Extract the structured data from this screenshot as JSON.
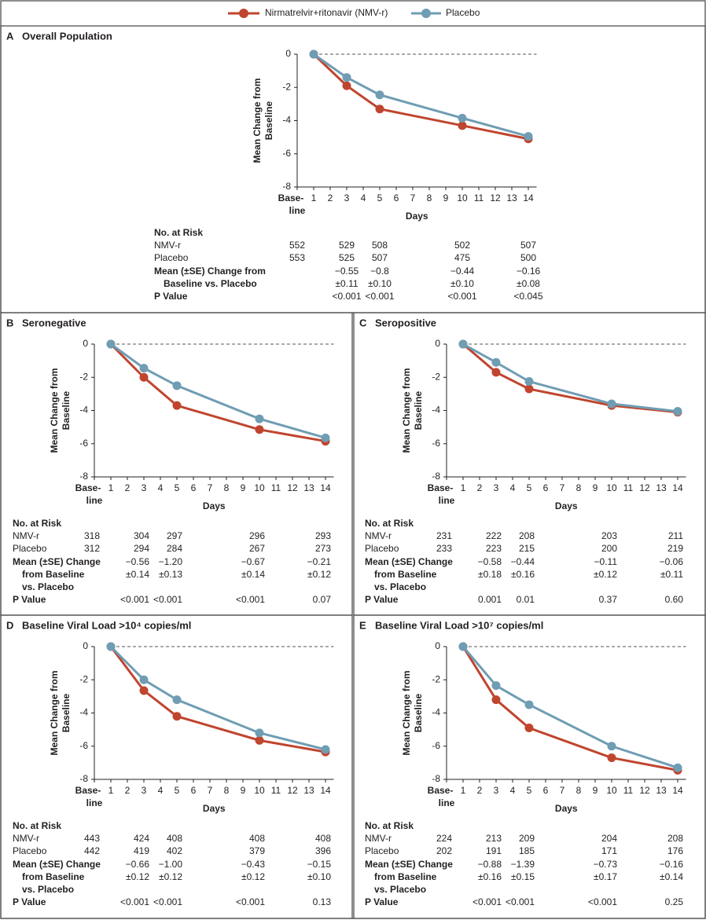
{
  "chart_data": [
    {
      "type": "line",
      "panel_label": "A",
      "title": "Overall Population",
      "y_label": [
        "Mean Change from",
        "Baseline"
      ],
      "x_label": "Days",
      "x": [
        1,
        3,
        5,
        10,
        14
      ],
      "xlim": [
        0,
        14.5
      ],
      "xticks": [
        {
          "value": 0,
          "label": "Base-line"
        },
        1,
        2,
        3,
        4,
        5,
        6,
        7,
        8,
        9,
        10,
        11,
        12,
        13,
        14
      ],
      "ylim": [
        -8,
        0
      ],
      "yticks": [
        0,
        -2,
        -4,
        -6,
        -8
      ],
      "series": [
        {
          "name": "Nirmatrelvir+ritonavir (NMV-r)",
          "color": "#c0452e",
          "values": [
            0,
            -1.9,
            -3.3,
            -4.3,
            -5.1
          ]
        },
        {
          "name": "Placebo",
          "color": "#6f9db3",
          "values": [
            0,
            -1.4,
            -2.45,
            -3.85,
            -4.95
          ]
        }
      ],
      "risk_table": {
        "heading": "No. at Risk",
        "rows": [
          {
            "label": "NMV-r",
            "values": [
              "552",
              "529",
              "508",
              "502",
              "507"
            ]
          },
          {
            "label": "Placebo",
            "values": [
              "553",
              "525",
              "507",
              "475",
              "500"
            ]
          }
        ],
        "difference": {
          "label": [
            "Mean (±SE) Change from",
            "Baseline vs. Placebo"
          ],
          "values": [
            "−0.55",
            "−0.8",
            "−0.44",
            "−0.16"
          ],
          "se": [
            "±0.11",
            "±0.10",
            "±0.10",
            "±0.08"
          ]
        },
        "p_value": {
          "label": "P Value",
          "values": [
            "<0.001",
            "<0.001",
            "<0.001",
            "<0.045"
          ]
        }
      }
    },
    {
      "type": "line",
      "panel_label": "B",
      "title": "Seronegative",
      "y_label": [
        "Mean Change from",
        "Baseline"
      ],
      "x_label": "Days",
      "x": [
        1,
        3,
        5,
        10,
        14
      ],
      "xlim": [
        0,
        14.5
      ],
      "xticks": [
        {
          "value": 0,
          "label": "Base-line"
        },
        1,
        2,
        3,
        4,
        5,
        6,
        7,
        8,
        9,
        10,
        11,
        12,
        13,
        14
      ],
      "ylim": [
        -8,
        0
      ],
      "yticks": [
        0,
        -2,
        -4,
        -6,
        -8
      ],
      "series": [
        {
          "color": "#c0452e",
          "values": [
            0,
            -2.0,
            -3.7,
            -5.15,
            -5.85
          ]
        },
        {
          "color": "#6f9db3",
          "values": [
            0,
            -1.45,
            -2.5,
            -4.5,
            -5.65
          ]
        }
      ],
      "risk_table": {
        "heading": "No. at Risk",
        "rows": [
          {
            "label": "NMV-r",
            "values": [
              "318",
              "304",
              "297",
              "296",
              "293"
            ]
          },
          {
            "label": "Placebo",
            "values": [
              "312",
              "294",
              "284",
              "267",
              "273"
            ]
          }
        ],
        "difference": {
          "label": [
            "Mean (±SE) Change",
            "from Baseline",
            "vs. Placebo"
          ],
          "values": [
            "−0.56",
            "−1.20",
            "−0.67",
            "−0.21"
          ],
          "se": [
            "±0.14",
            "±0.13",
            "±0.14",
            "±0.12"
          ]
        },
        "p_value": {
          "label": "P Value",
          "values": [
            "<0.001",
            "<0.001",
            "<0.001",
            "0.07"
          ]
        }
      }
    },
    {
      "type": "line",
      "panel_label": "C",
      "title": "Seropositive",
      "y_label": [
        "Mean Change from",
        "Baseline"
      ],
      "x_label": "Days",
      "x": [
        1,
        3,
        5,
        10,
        14
      ],
      "xlim": [
        0,
        14.5
      ],
      "xticks": [
        {
          "value": 0,
          "label": "Base-line"
        },
        1,
        2,
        3,
        4,
        5,
        6,
        7,
        8,
        9,
        10,
        11,
        12,
        13,
        14
      ],
      "ylim": [
        -8,
        0
      ],
      "yticks": [
        0,
        -2,
        -4,
        -6,
        -8
      ],
      "series": [
        {
          "color": "#c0452e",
          "values": [
            0,
            -1.7,
            -2.7,
            -3.7,
            -4.1
          ]
        },
        {
          "color": "#6f9db3",
          "values": [
            0,
            -1.1,
            -2.25,
            -3.6,
            -4.05
          ]
        }
      ],
      "risk_table": {
        "heading": "No. at Risk",
        "rows": [
          {
            "label": "NMV-r",
            "values": [
              "231",
              "222",
              "208",
              "203",
              "211"
            ]
          },
          {
            "label": "Placebo",
            "values": [
              "233",
              "223",
              "215",
              "200",
              "219"
            ]
          }
        ],
        "difference": {
          "label": [
            "Mean (±SE) Change",
            "from Baseline",
            "vs. Placebo"
          ],
          "values": [
            "−0.58",
            "−0.44",
            "−0.11",
            "−0.06"
          ],
          "se": [
            "±0.18",
            "±0.16",
            "±0.12",
            "±0.11"
          ]
        },
        "p_value": {
          "label": "P Value",
          "values": [
            "0.001",
            "0.01",
            "0.37",
            "0.60"
          ]
        }
      }
    },
    {
      "type": "line",
      "panel_label": "D",
      "title": "Baseline Viral Load >10⁴ copies/ml",
      "y_label": [
        "Mean Change from",
        "Baseline"
      ],
      "x_label": "Days",
      "x": [
        1,
        3,
        5,
        10,
        14
      ],
      "xlim": [
        0,
        14.5
      ],
      "xticks": [
        {
          "value": 0,
          "label": "Base-line"
        },
        1,
        2,
        3,
        4,
        5,
        6,
        7,
        8,
        9,
        10,
        11,
        12,
        13,
        14
      ],
      "ylim": [
        -8,
        0
      ],
      "yticks": [
        0,
        -2,
        -4,
        -6,
        -8
      ],
      "series": [
        {
          "color": "#c0452e",
          "values": [
            0,
            -2.65,
            -4.2,
            -5.65,
            -6.35
          ]
        },
        {
          "color": "#6f9db3",
          "values": [
            0,
            -2.0,
            -3.2,
            -5.2,
            -6.2
          ]
        }
      ],
      "risk_table": {
        "heading": "No. at Risk",
        "rows": [
          {
            "label": "NMV-r",
            "values": [
              "443",
              "424",
              "408",
              "408",
              "408"
            ]
          },
          {
            "label": "Placebo",
            "values": [
              "442",
              "419",
              "402",
              "379",
              "396"
            ]
          }
        ],
        "difference": {
          "label": [
            "Mean (±SE) Change",
            "from Baseline",
            "vs. Placebo"
          ],
          "values": [
            "−0.66",
            "−1.00",
            "−0.43",
            "−0.15"
          ],
          "se": [
            "±0.12",
            "±0.12",
            "±0.12",
            "±0.10"
          ]
        },
        "p_value": {
          "label": "P Value",
          "values": [
            "<0.001",
            "<0.001",
            "<0.001",
            "0.13"
          ]
        }
      }
    },
    {
      "type": "line",
      "panel_label": "E",
      "title": "Baseline Viral Load >10⁷ copies/ml",
      "y_label": [
        "Mean Change from",
        "Baseline"
      ],
      "x_label": "Days",
      "x": [
        1,
        3,
        5,
        10,
        14
      ],
      "xlim": [
        0,
        14.5
      ],
      "xticks": [
        {
          "value": 0,
          "label": "Base-line"
        },
        1,
        2,
        3,
        4,
        5,
        6,
        7,
        8,
        9,
        10,
        11,
        12,
        13,
        14
      ],
      "ylim": [
        -8,
        0
      ],
      "yticks": [
        0,
        -2,
        -4,
        -6,
        -8
      ],
      "series": [
        {
          "color": "#c0452e",
          "values": [
            0,
            -3.2,
            -4.9,
            -6.7,
            -7.45
          ]
        },
        {
          "color": "#6f9db3",
          "values": [
            0,
            -2.35,
            -3.5,
            -6.0,
            -7.3
          ]
        }
      ],
      "risk_table": {
        "heading": "No. at Risk",
        "rows": [
          {
            "label": "NMV-r",
            "values": [
              "224",
              "213",
              "209",
              "204",
              "208"
            ]
          },
          {
            "label": "Placebo",
            "values": [
              "202",
              "191",
              "185",
              "171",
              "176"
            ]
          }
        ],
        "difference": {
          "label": [
            "Mean (±SE) Change",
            "from Baseline",
            "vs. Placebo"
          ],
          "values": [
            "−0.88",
            "−1.39",
            "−0.73",
            "−0.16"
          ],
          "se": [
            "±0.16",
            "±0.15",
            "±0.17",
            "±0.14"
          ]
        },
        "p_value": {
          "label": "P Value",
          "values": [
            "<0.001",
            "<0.001",
            "<0.001",
            "0.25"
          ]
        }
      }
    }
  ]
}
